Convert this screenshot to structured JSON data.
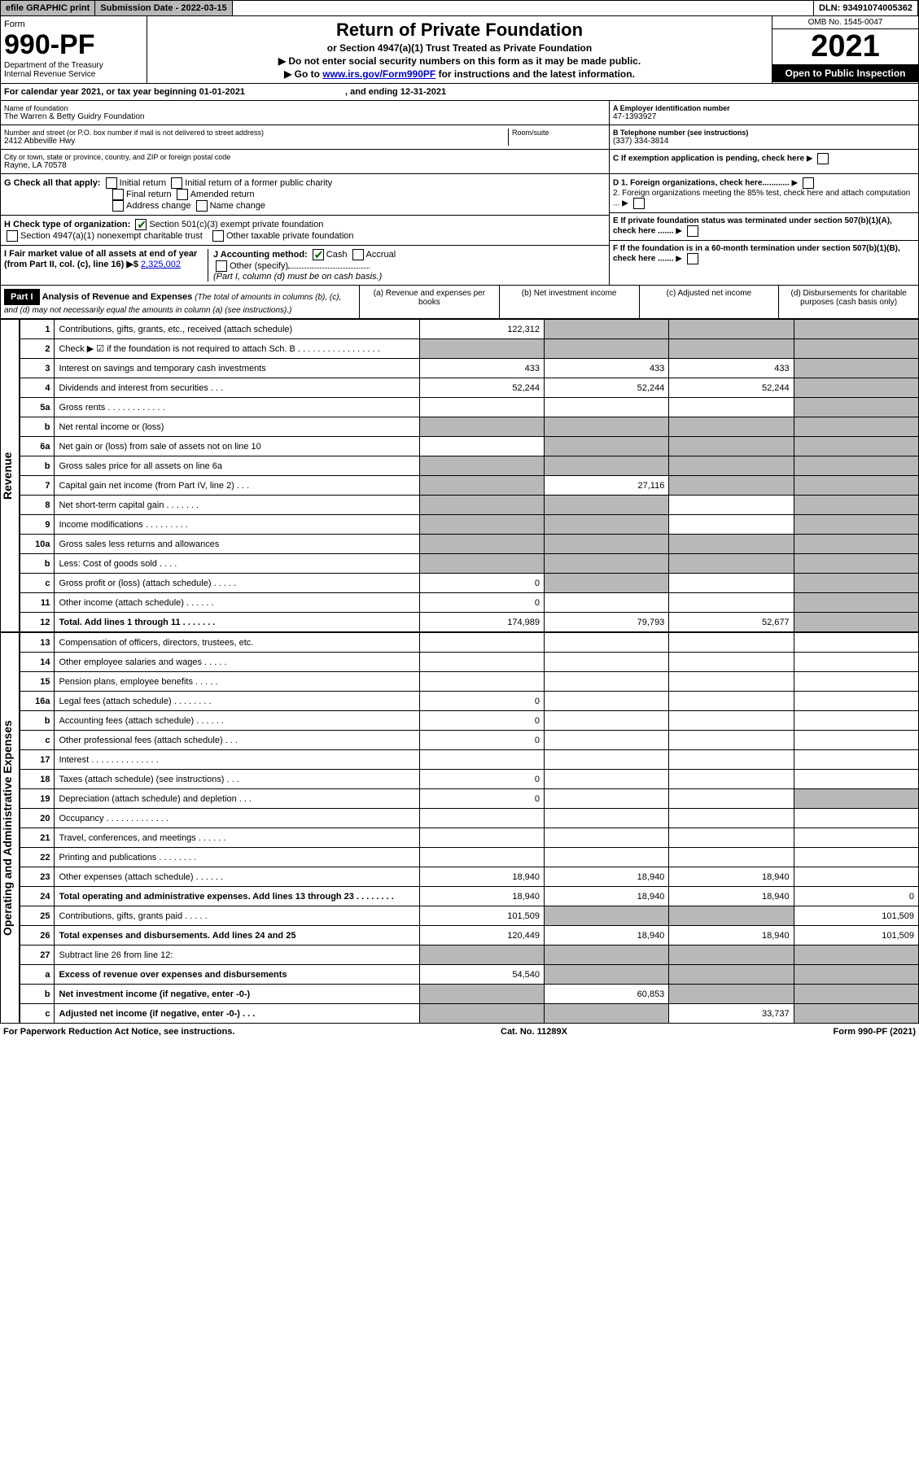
{
  "topbar": {
    "efile": "efile GRAPHIC print",
    "subdate_label": "Submission Date - ",
    "subdate": "2022-03-15",
    "dln_label": "DLN: ",
    "dln": "93491074005362"
  },
  "header": {
    "form_label": "Form",
    "form_no": "990-PF",
    "dept": "Department of the Treasury",
    "irs": "Internal Revenue Service",
    "title": "Return of Private Foundation",
    "subtitle": "or Section 4947(a)(1) Trust Treated as Private Foundation",
    "note1": "▶ Do not enter social security numbers on this form as it may be made public.",
    "note2_pre": "▶ Go to ",
    "note2_link": "www.irs.gov/Form990PF",
    "note2_post": " for instructions and the latest information.",
    "omb": "OMB No. 1545-0047",
    "year": "2021",
    "open": "Open to Public Inspection"
  },
  "calyear": {
    "text_a": "For calendar year 2021, or tax year beginning ",
    "begin": "01-01-2021",
    "text_b": " , and ending ",
    "end": "12-31-2021"
  },
  "foundation": {
    "name_lbl": "Name of foundation",
    "name": "The Warren & Betty Guidry Foundation",
    "addr_lbl": "Number and street (or P.O. box number if mail is not delivered to street address)",
    "addr": "2412 Abbeville Hwy",
    "room_lbl": "Room/suite",
    "city_lbl": "City or town, state or province, country, and ZIP or foreign postal code",
    "city": "Rayne, LA  70578",
    "ein_lbl": "A Employer identification number",
    "ein": "47-1393927",
    "tel_lbl": "B Telephone number (see instructions)",
    "tel": "(337) 334-3814",
    "c_lbl": "C If exemption application is pending, check here",
    "d1_lbl": "D 1. Foreign organizations, check here............",
    "d2_lbl": "2. Foreign organizations meeting the 85% test, check here and attach computation ...",
    "e_lbl": "E If private foundation status was terminated under section 507(b)(1)(A), check here .......",
    "f_lbl": "F If the foundation is in a 60-month termination under section 507(b)(1)(B), check here .......",
    "g_lbl": "G Check all that apply:",
    "g_opts": [
      "Initial return",
      "Initial return of a former public charity",
      "Final return",
      "Amended return",
      "Address change",
      "Name change"
    ],
    "h_lbl": "H Check type of organization:",
    "h_opt1": "Section 501(c)(3) exempt private foundation",
    "h_opt2": "Section 4947(a)(1) nonexempt charitable trust",
    "h_opt3": "Other taxable private foundation",
    "i_lbl": "I Fair market value of all assets at end of year (from Part II, col. (c), line 16) ▶$ ",
    "i_val": "2,325,002",
    "j_lbl": "J Accounting method:",
    "j_opts": [
      "Cash",
      "Accrual",
      "Other (specify)"
    ],
    "j_note": "(Part I, column (d) must be on cash basis.)"
  },
  "part1": {
    "label": "Part I",
    "title": "Analysis of Revenue and Expenses",
    "note": "(The total of amounts in columns (b), (c), and (d) may not necessarily equal the amounts in column (a) (see instructions).)",
    "col_a": "(a) Revenue and expenses per books",
    "col_b": "(b) Net investment income",
    "col_c": "(c) Adjusted net income",
    "col_d": "(d) Disbursements for charitable purposes (cash basis only)"
  },
  "side_rev": "Revenue",
  "side_exp": "Operating and Administrative Expenses",
  "rows_rev": [
    {
      "n": "1",
      "d": "Contributions, gifts, grants, etc., received (attach schedule)",
      "a": "122,312",
      "b": "",
      "c": "",
      "agray": false,
      "bgray": true,
      "cgray": true,
      "dgray": true
    },
    {
      "n": "2",
      "d": "Check ▶ ☑ if the foundation is not required to attach Sch. B  . . . . . . . . . . . . . . . . .",
      "a": "",
      "b": "",
      "c": "",
      "agray": true,
      "bgray": true,
      "cgray": true,
      "dgray": true
    },
    {
      "n": "3",
      "d": "Interest on savings and temporary cash investments",
      "a": "433",
      "b": "433",
      "c": "433",
      "dgray": true
    },
    {
      "n": "4",
      "d": "Dividends and interest from securities   .  .  .",
      "a": "52,244",
      "b": "52,244",
      "c": "52,244",
      "dgray": true
    },
    {
      "n": "5a",
      "d": "Gross rents   .  .  .  .  .  .  .  .  .  .  .  .",
      "a": "",
      "b": "",
      "c": "",
      "dgray": true
    },
    {
      "n": "b",
      "d": "Net rental income or (loss)",
      "a": "",
      "b": "",
      "c": "",
      "agray": true,
      "bgray": true,
      "cgray": true,
      "dgray": true
    },
    {
      "n": "6a",
      "d": "Net gain or (loss) from sale of assets not on line 10",
      "a": "",
      "b": "",
      "c": "",
      "bgray": true,
      "cgray": true,
      "dgray": true
    },
    {
      "n": "b",
      "d": "Gross sales price for all assets on line 6a",
      "a": "",
      "b": "",
      "c": "",
      "agray": true,
      "bgray": true,
      "cgray": true,
      "dgray": true
    },
    {
      "n": "7",
      "d": "Capital gain net income (from Part IV, line 2)   .  .  .",
      "a": "",
      "b": "27,116",
      "c": "",
      "agray": true,
      "cgray": true,
      "dgray": true
    },
    {
      "n": "8",
      "d": "Net short-term capital gain   .  .  .  .  .  .  .",
      "a": "",
      "b": "",
      "c": "",
      "agray": true,
      "bgray": true,
      "dgray": true
    },
    {
      "n": "9",
      "d": "Income modifications  .  .  .  .  .  .  .  .  .",
      "a": "",
      "b": "",
      "c": "",
      "agray": true,
      "bgray": true,
      "dgray": true
    },
    {
      "n": "10a",
      "d": "Gross sales less returns and allowances",
      "a": "",
      "b": "",
      "c": "",
      "agray": true,
      "bgray": true,
      "cgray": true,
      "dgray": true
    },
    {
      "n": "b",
      "d": "Less: Cost of goods sold   .  .  .  .",
      "a": "",
      "b": "",
      "c": "",
      "agray": true,
      "bgray": true,
      "cgray": true,
      "dgray": true
    },
    {
      "n": "c",
      "d": "Gross profit or (loss) (attach schedule)   .  .  .  .  .",
      "a": "0",
      "b": "",
      "c": "",
      "bgray": true,
      "dgray": true
    },
    {
      "n": "11",
      "d": "Other income (attach schedule)   .  .  .  .  .  .",
      "a": "0",
      "b": "",
      "c": "",
      "dgray": true
    },
    {
      "n": "12",
      "d": "Total. Add lines 1 through 11   .  .  .  .  .  .  .",
      "a": "174,989",
      "b": "79,793",
      "c": "52,677",
      "bold": true,
      "dgray": true
    }
  ],
  "rows_exp": [
    {
      "n": "13",
      "d": "Compensation of officers, directors, trustees, etc.",
      "a": "",
      "b": "",
      "c": "",
      "dd": ""
    },
    {
      "n": "14",
      "d": "Other employee salaries and wages   .  .  .  .  .",
      "a": "",
      "b": "",
      "c": "",
      "dd": ""
    },
    {
      "n": "15",
      "d": "Pension plans, employee benefits  .  .  .  .  .",
      "a": "",
      "b": "",
      "c": "",
      "dd": ""
    },
    {
      "n": "16a",
      "d": "Legal fees (attach schedule)  .  .  .  .  .  .  .  .",
      "a": "0",
      "b": "",
      "c": "",
      "dd": ""
    },
    {
      "n": "b",
      "d": "Accounting fees (attach schedule)  .  .  .  .  .  .",
      "a": "0",
      "b": "",
      "c": "",
      "dd": ""
    },
    {
      "n": "c",
      "d": "Other professional fees (attach schedule)   .  .  .",
      "a": "0",
      "b": "",
      "c": "",
      "dd": ""
    },
    {
      "n": "17",
      "d": "Interest  .  .  .  .  .  .  .  .  .  .  .  .  .  .",
      "a": "",
      "b": "",
      "c": "",
      "dd": ""
    },
    {
      "n": "18",
      "d": "Taxes (attach schedule) (see instructions)   .  .  .",
      "a": "0",
      "b": "",
      "c": "",
      "dd": ""
    },
    {
      "n": "19",
      "d": "Depreciation (attach schedule) and depletion   .  .  .",
      "a": "0",
      "b": "",
      "c": "",
      "dd": "",
      "dgray": true
    },
    {
      "n": "20",
      "d": "Occupancy  .  .  .  .  .  .  .  .  .  .  .  .  .",
      "a": "",
      "b": "",
      "c": "",
      "dd": ""
    },
    {
      "n": "21",
      "d": "Travel, conferences, and meetings  .  .  .  .  .  .",
      "a": "",
      "b": "",
      "c": "",
      "dd": ""
    },
    {
      "n": "22",
      "d": "Printing and publications  .  .  .  .  .  .  .  .",
      "a": "",
      "b": "",
      "c": "",
      "dd": ""
    },
    {
      "n": "23",
      "d": "Other expenses (attach schedule)  .  .  .  .  .  .",
      "a": "18,940",
      "b": "18,940",
      "c": "18,940",
      "dd": ""
    },
    {
      "n": "24",
      "d": "Total operating and administrative expenses. Add lines 13 through 23   .  .  .  .  .  .  .  .",
      "a": "18,940",
      "b": "18,940",
      "c": "18,940",
      "dd": "0",
      "bold": true
    },
    {
      "n": "25",
      "d": "Contributions, gifts, grants paid   .  .  .  .  .",
      "a": "101,509",
      "b": "",
      "c": "",
      "dd": "101,509",
      "bgray": true,
      "cgray": true
    },
    {
      "n": "26",
      "d": "Total expenses and disbursements. Add lines 24 and 25",
      "a": "120,449",
      "b": "18,940",
      "c": "18,940",
      "dd": "101,509",
      "bold": true
    },
    {
      "n": "27",
      "d": "Subtract line 26 from line 12:",
      "a": "",
      "b": "",
      "c": "",
      "dd": "",
      "agray": true,
      "bgray": true,
      "cgray": true,
      "dgray": true
    },
    {
      "n": "a",
      "d": "Excess of revenue over expenses and disbursements",
      "a": "54,540",
      "b": "",
      "c": "",
      "dd": "",
      "bold": true,
      "bgray": true,
      "cgray": true,
      "dgray": true
    },
    {
      "n": "b",
      "d": "Net investment income (if negative, enter -0-)",
      "a": "",
      "b": "60,853",
      "c": "",
      "dd": "",
      "bold": true,
      "agray": true,
      "cgray": true,
      "dgray": true
    },
    {
      "n": "c",
      "d": "Adjusted net income (if negative, enter -0-)   .  .  .",
      "a": "",
      "b": "",
      "c": "33,737",
      "dd": "",
      "bold": true,
      "agray": true,
      "bgray": true,
      "dgray": true
    }
  ],
  "footer": {
    "left": "For Paperwork Reduction Act Notice, see instructions.",
    "mid": "Cat. No. 11289X",
    "right": "Form 990-PF (2021)"
  }
}
